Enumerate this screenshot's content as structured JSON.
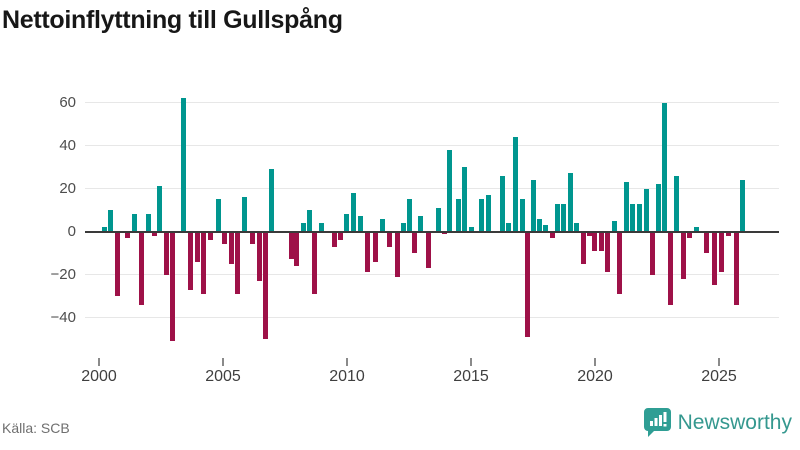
{
  "header": {
    "title": "Nettoinflyttning till Gullspång"
  },
  "footer": {
    "source": "Källa: SCB",
    "brand": "Newsworthy"
  },
  "icons": {
    "brand_badge": "bar-chart-speech-bubble-icon"
  },
  "chart_data": {
    "type": "bar",
    "title": "Nettoinflyttning till Gullspång",
    "xlabel": "",
    "ylabel": "",
    "x_ticks": [
      2000,
      2005,
      2010,
      2015,
      2020,
      2025
    ],
    "y_ticks": [
      60,
      40,
      20,
      0,
      -20,
      -40
    ],
    "xlim": [
      1999.4,
      2027.4
    ],
    "ylim": [
      -57,
      67
    ],
    "grid": true,
    "legend": false,
    "colors": {
      "positive_bar": "#00968f",
      "negative_bar": "#9e1148",
      "axis": "#3a3a3a"
    },
    "points": [
      {
        "x": 2000.2,
        "v": 2
      },
      {
        "x": 2000.47,
        "v": 10
      },
      {
        "x": 2000.74,
        "v": -30
      },
      {
        "x": 2001.14,
        "v": -3
      },
      {
        "x": 2001.44,
        "v": 8
      },
      {
        "x": 2001.7,
        "v": -34
      },
      {
        "x": 2001.98,
        "v": 8
      },
      {
        "x": 2002.25,
        "v": -2
      },
      {
        "x": 2002.44,
        "v": 21
      },
      {
        "x": 2002.7,
        "v": -20
      },
      {
        "x": 2002.98,
        "v": -51
      },
      {
        "x": 2003.42,
        "v": 62
      },
      {
        "x": 2003.69,
        "v": -27
      },
      {
        "x": 2003.95,
        "v": -14
      },
      {
        "x": 2004.23,
        "v": -29
      },
      {
        "x": 2004.5,
        "v": -4
      },
      {
        "x": 2004.8,
        "v": 15
      },
      {
        "x": 2005.07,
        "v": -6
      },
      {
        "x": 2005.33,
        "v": -15
      },
      {
        "x": 2005.6,
        "v": -29
      },
      {
        "x": 2005.88,
        "v": 16
      },
      {
        "x": 2006.2,
        "v": -6
      },
      {
        "x": 2006.45,
        "v": -23
      },
      {
        "x": 2006.7,
        "v": -50
      },
      {
        "x": 2006.95,
        "v": 29
      },
      {
        "x": 2007.75,
        "v": -13
      },
      {
        "x": 2007.97,
        "v": -16
      },
      {
        "x": 2008.23,
        "v": 4
      },
      {
        "x": 2008.5,
        "v": 10
      },
      {
        "x": 2008.7,
        "v": -29
      },
      {
        "x": 2008.97,
        "v": 4
      },
      {
        "x": 2009.48,
        "v": -7
      },
      {
        "x": 2009.72,
        "v": -4
      },
      {
        "x": 2009.96,
        "v": 8
      },
      {
        "x": 2010.24,
        "v": 18
      },
      {
        "x": 2010.54,
        "v": 7
      },
      {
        "x": 2010.83,
        "v": -19
      },
      {
        "x": 2011.13,
        "v": -14
      },
      {
        "x": 2011.42,
        "v": 6
      },
      {
        "x": 2011.72,
        "v": -7
      },
      {
        "x": 2012.02,
        "v": -21
      },
      {
        "x": 2012.28,
        "v": 4
      },
      {
        "x": 2012.52,
        "v": 15
      },
      {
        "x": 2012.73,
        "v": -10
      },
      {
        "x": 2012.97,
        "v": 7
      },
      {
        "x": 2013.28,
        "v": -17
      },
      {
        "x": 2013.7,
        "v": 11
      },
      {
        "x": 2013.94,
        "v": -1
      },
      {
        "x": 2014.15,
        "v": 38
      },
      {
        "x": 2014.48,
        "v": 15
      },
      {
        "x": 2014.72,
        "v": 30
      },
      {
        "x": 2015.0,
        "v": 2
      },
      {
        "x": 2015.43,
        "v": 15
      },
      {
        "x": 2015.7,
        "v": 17
      },
      {
        "x": 2016.26,
        "v": 26
      },
      {
        "x": 2016.53,
        "v": 4
      },
      {
        "x": 2016.8,
        "v": 44
      },
      {
        "x": 2017.06,
        "v": 15
      },
      {
        "x": 2017.29,
        "v": -49
      },
      {
        "x": 2017.5,
        "v": 24
      },
      {
        "x": 2017.74,
        "v": 6
      },
      {
        "x": 2018.01,
        "v": 3
      },
      {
        "x": 2018.28,
        "v": -3
      },
      {
        "x": 2018.5,
        "v": 13
      },
      {
        "x": 2018.74,
        "v": 13
      },
      {
        "x": 2019.0,
        "v": 27
      },
      {
        "x": 2019.27,
        "v": 4
      },
      {
        "x": 2019.54,
        "v": -15
      },
      {
        "x": 2019.77,
        "v": -2
      },
      {
        "x": 2019.97,
        "v": -9
      },
      {
        "x": 2020.24,
        "v": -9
      },
      {
        "x": 2020.51,
        "v": -19
      },
      {
        "x": 2020.77,
        "v": 5
      },
      {
        "x": 2021.0,
        "v": -29
      },
      {
        "x": 2021.27,
        "v": 23
      },
      {
        "x": 2021.53,
        "v": 13
      },
      {
        "x": 2021.8,
        "v": 13
      },
      {
        "x": 2022.07,
        "v": 20
      },
      {
        "x": 2022.3,
        "v": -20
      },
      {
        "x": 2022.55,
        "v": 22
      },
      {
        "x": 2022.8,
        "v": 60
      },
      {
        "x": 2023.05,
        "v": -34
      },
      {
        "x": 2023.3,
        "v": 26
      },
      {
        "x": 2023.55,
        "v": -22
      },
      {
        "x": 2023.82,
        "v": -3
      },
      {
        "x": 2024.11,
        "v": 2
      },
      {
        "x": 2024.49,
        "v": -10
      },
      {
        "x": 2024.81,
        "v": -25
      },
      {
        "x": 2025.11,
        "v": -19
      },
      {
        "x": 2025.4,
        "v": -2
      },
      {
        "x": 2025.7,
        "v": -34
      },
      {
        "x": 2025.94,
        "v": 24
      }
    ]
  }
}
